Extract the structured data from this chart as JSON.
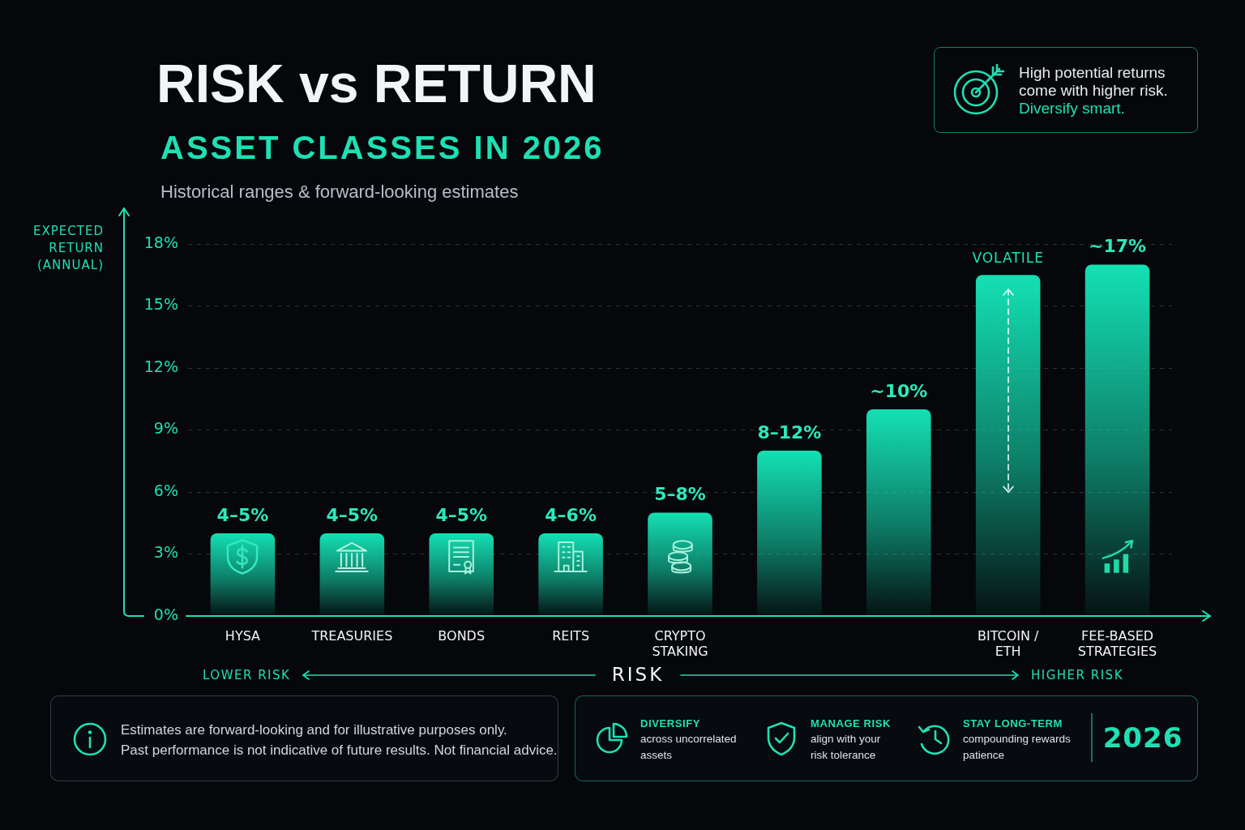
{
  "chart_data": {
    "type": "bar",
    "title": "RISK vs RETURN",
    "subtitle": "ASSET CLASSES IN 2026",
    "xlabel": "RISK",
    "ylabel": "EXPECTED RETURN (ANNUAL)",
    "categories": [
      "HYSA",
      "TREASURIES",
      "BONDS",
      "REITS",
      "CRYPTO STAKING",
      null,
      null,
      "BITCOIN / ETH",
      "FEE-BASED STRATEGIES"
    ],
    "values": [
      4,
      4,
      4,
      4,
      5,
      8,
      10,
      16.5,
      17
    ],
    "value_labels": [
      "4–5%",
      "4–5%",
      "4–5%",
      "4–6%",
      "5–8%",
      "8–12%",
      "~10%",
      null,
      "~17%"
    ],
    "color": "#14e0b4",
    "ylim": [
      0,
      18
    ],
    "yticks": [
      {
        "value": 0,
        "label": "0%"
      },
      {
        "value": 3,
        "label": "3%"
      },
      {
        "value": 6,
        "label": "6%"
      },
      {
        "value": 9,
        "label": "9%"
      },
      {
        "value": 12,
        "label": "12%"
      },
      {
        "value": 15,
        "label": "15%"
      },
      {
        "value": 18,
        "label": "18%"
      }
    ],
    "grid": "y",
    "annotations": [
      "Historical ranges & forward-looking estimates",
      "High potential returns come with higher risk.",
      "Diversify smart.",
      "VOLATILE",
      "LOWER RISK",
      "HIGHER RISK",
      "Estimates are forward-looking and for illustrative purposes only.",
      "Past performance is not indicative of future results. Not financial advice.",
      "DIVERSIFY",
      "across uncorrelated assets",
      "MANAGE RISK",
      "align with your risk tolerance",
      "STAY LONG-TERM",
      "compounding rewards patience",
      "2026"
    ]
  }
}
